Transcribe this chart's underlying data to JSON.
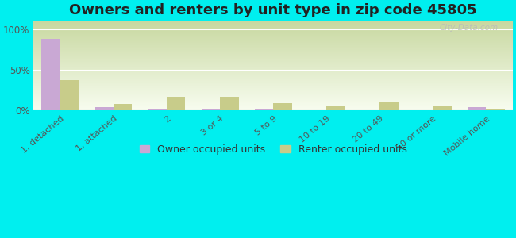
{
  "title": "Owners and renters by unit type in zip code 45805",
  "categories": [
    "1, detached",
    "1, attached",
    "2",
    "3 or 4",
    "5 to 9",
    "10 to 19",
    "20 to 49",
    "50 or more",
    "Mobile home"
  ],
  "owner_values": [
    88,
    4,
    1,
    1,
    1,
    0,
    0,
    0,
    4
  ],
  "renter_values": [
    37,
    8,
    17,
    17,
    9,
    6,
    11,
    5,
    1
  ],
  "owner_color": "#c9a8d4",
  "renter_color": "#c8cc8a",
  "background_color": "#00efef",
  "title_fontsize": 13,
  "ylabel_ticks": [
    0,
    50,
    100
  ],
  "ylabel_labels": [
    "0%",
    "50%",
    "100%"
  ],
  "ylim": [
    0,
    110
  ],
  "bar_width": 0.35,
  "legend_owner": "Owner occupied units",
  "legend_renter": "Renter occupied units",
  "watermark": "City-Data.com",
  "grad_top": "#c8d8a0",
  "grad_bottom": "#f8fdf0"
}
